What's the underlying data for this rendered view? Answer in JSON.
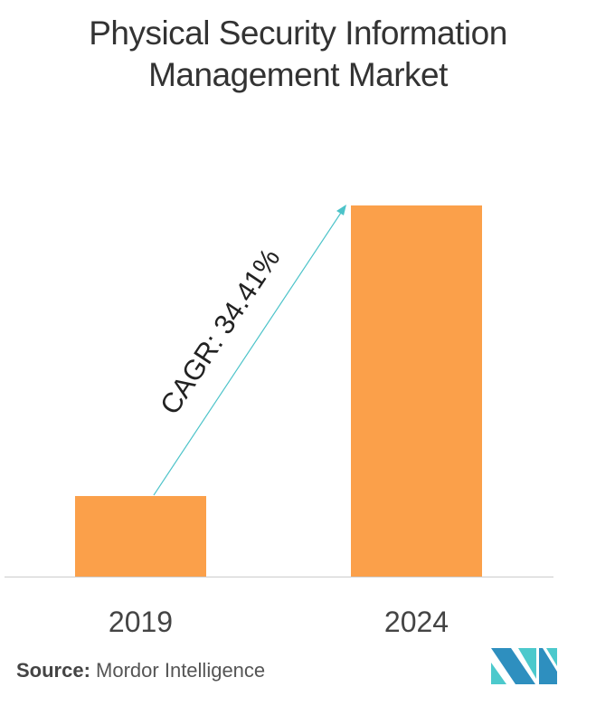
{
  "chart_data": {
    "type": "bar",
    "title": "Physical Security Information Management Market",
    "categories": [
      "2019",
      "2024"
    ],
    "values": [
      21.7,
      100
    ],
    "value_note_unit": "relative bar height (percent of 2024), no axis values shown",
    "xlabel": "",
    "ylabel": "",
    "ylim": [
      0,
      100
    ],
    "grid": false,
    "legend": "none",
    "annotation": "CAGR: 34.41%",
    "bar_color": "#FBA04A",
    "arrow_color": "#4CC3C9"
  },
  "source": {
    "label": "Source:",
    "text": "Mordor Intelligence"
  },
  "logo": {
    "colors": [
      "#2E8FBF",
      "#4CC9CC"
    ]
  }
}
